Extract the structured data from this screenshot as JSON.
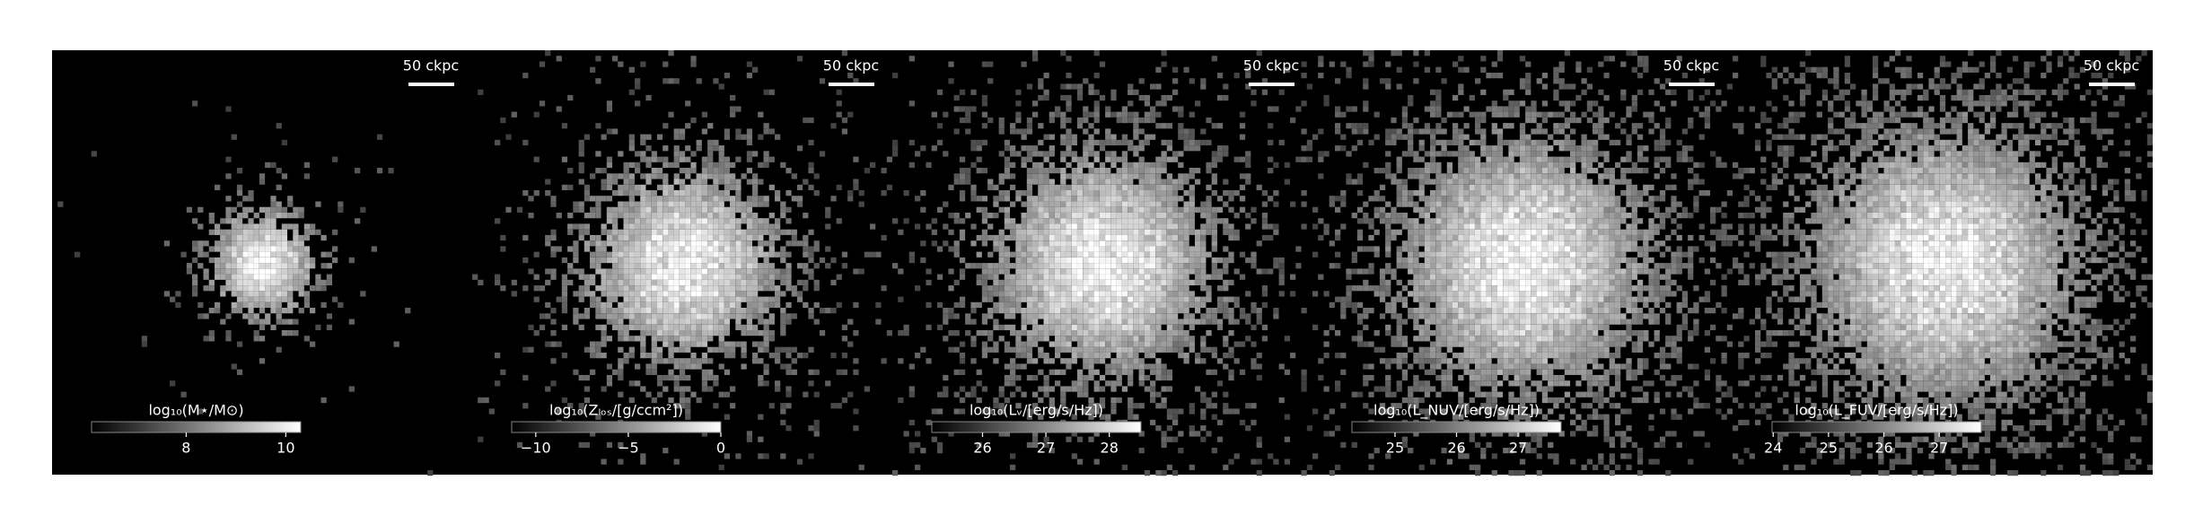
{
  "panels": [
    {
      "scale_bar": "50 ckpc",
      "colorbar": {
        "label": "log₁₀(M⋆/M⊙)",
        "lim": [
          6.1,
          10.3
        ],
        "ticks": [
          8,
          10
        ]
      }
    },
    {
      "scale_bar": "50 ckpc",
      "colorbar": {
        "label": "log₁₀(Zₗₒₛ/[g/ccm²])",
        "lim": [
          -11.3,
          0
        ],
        "ticks": [
          {
            "value": -10,
            "label": "−10"
          },
          {
            "value": -5,
            "label": "−5"
          },
          0
        ]
      }
    },
    {
      "scale_bar": "50 ckpc",
      "colorbar": {
        "label": "log₁₀(Lᵥ/[erg/s/Hz])",
        "lim": [
          25.2,
          28.5
        ],
        "ticks": [
          26,
          27,
          28
        ]
      }
    },
    {
      "scale_bar": "50 ckpc",
      "colorbar": {
        "label": "log₁₀(L_NUV/[erg/s/Hz])",
        "lim": [
          24.3,
          27.7
        ],
        "ticks": [
          25,
          26,
          27
        ]
      }
    },
    {
      "scale_bar": "50 ckpc",
      "colorbar": {
        "label": "log₁₀(L_FUV/[erg/s/Hz])",
        "lim": [
          23.98,
          27.76
        ],
        "ticks": [
          24,
          25,
          26,
          27
        ]
      }
    }
  ]
}
